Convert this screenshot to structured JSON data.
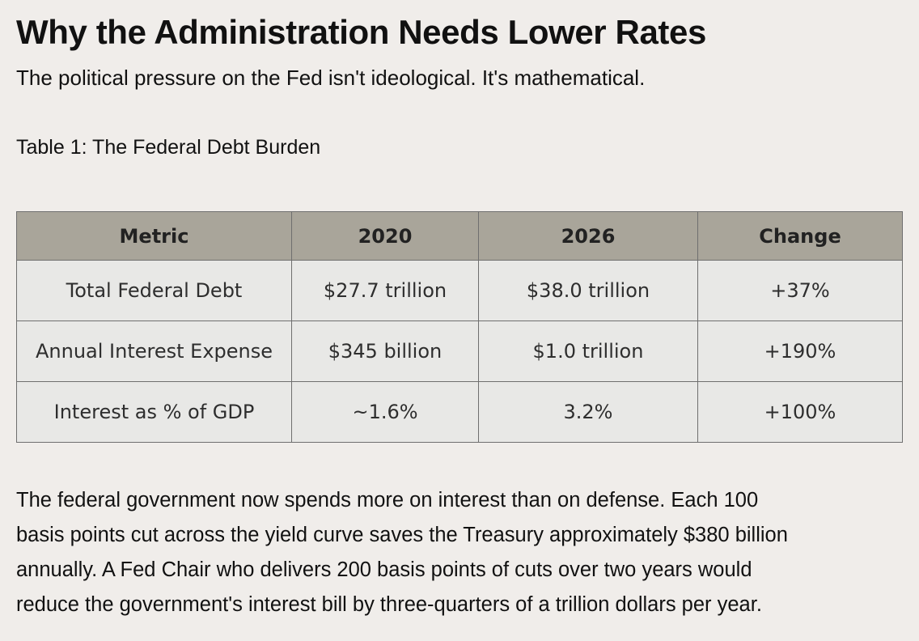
{
  "header": {
    "title": "Why the Administration Needs Lower Rates",
    "subtitle": "The political pressure on the Fed isn't ideological. It's mathematical."
  },
  "table": {
    "caption": "Table 1: The Federal Debt Burden",
    "columns": [
      "Metric",
      "2020",
      "2026",
      "Change"
    ],
    "rows": [
      [
        "Total Federal Debt",
        "$27.7 trillion",
        "$38.0 trillion",
        "+37%"
      ],
      [
        "Annual Interest Expense",
        "$345 billion",
        "$1.0 trillion",
        "+190%"
      ],
      [
        "Interest as % of GDP",
        "~1.6%",
        "3.2%",
        "+100%"
      ]
    ]
  },
  "body": {
    "lines": [
      "The federal government now spends more on interest than on defense. Each 100",
      "basis points cut across the yield curve saves the Treasury approximately $380 billion",
      "annually. A Fed Chair who delivers 200 basis points of cuts over two years would",
      "reduce the government's interest bill by three-quarters of a trillion dollars per year."
    ]
  }
}
